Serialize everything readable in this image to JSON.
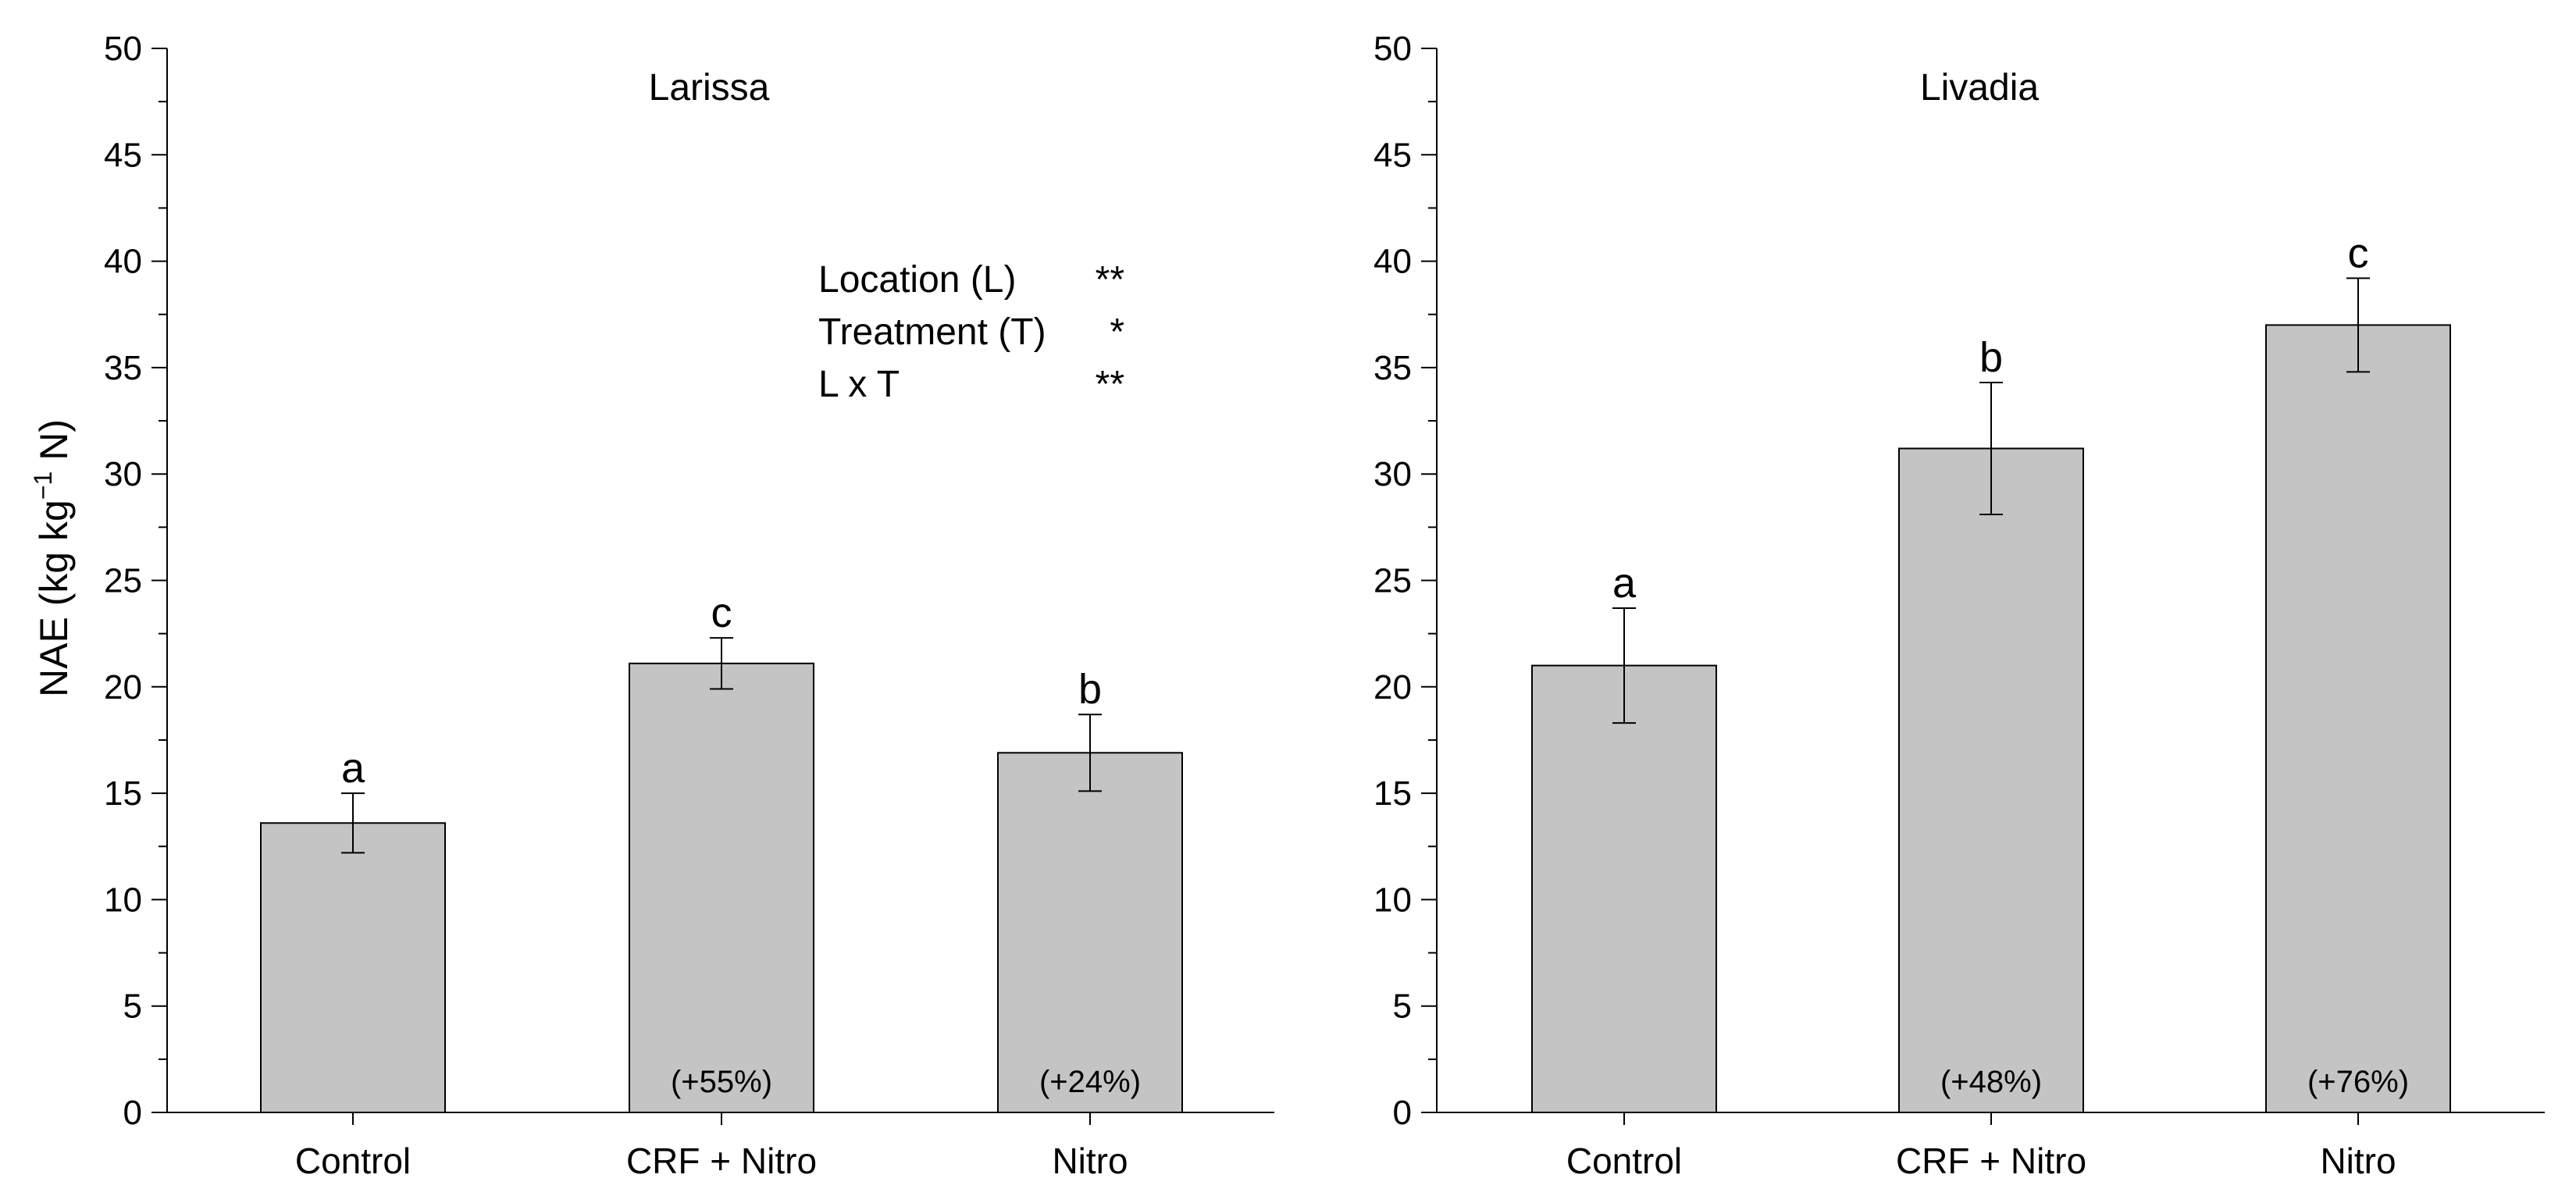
{
  "chart_data": [
    {
      "type": "bar",
      "title": "Larissa",
      "ylabel": "NAE (kg kg",
      "ylabel_sup": "−1",
      "ylabel_tail": " N)",
      "ylim": [
        0,
        50
      ],
      "yticks": [
        0,
        5,
        10,
        15,
        20,
        25,
        30,
        35,
        40,
        45,
        50
      ],
      "categories": [
        "Control",
        "CRF + Nitro",
        "Nitro"
      ],
      "values": [
        13.6,
        21.1,
        16.9
      ],
      "errors": [
        1.4,
        1.2,
        1.8
      ],
      "letters": [
        "a",
        "c",
        "b"
      ],
      "changes": [
        "",
        "(+55%)",
        "(+24%)"
      ],
      "stats": [
        {
          "factor": "Location (L)",
          "sig": "**"
        },
        {
          "factor": "Treatment (T)",
          "sig": "*"
        },
        {
          "factor": "L x T",
          "sig": "**"
        }
      ]
    },
    {
      "type": "bar",
      "title": "Livadia",
      "ylim": [
        0,
        50
      ],
      "yticks": [
        0,
        5,
        10,
        15,
        20,
        25,
        30,
        35,
        40,
        45,
        50
      ],
      "categories": [
        "Control",
        "CRF + Nitro",
        "Nitro"
      ],
      "values": [
        21.0,
        31.2,
        37.0
      ],
      "errors": [
        2.7,
        3.1,
        2.2
      ],
      "letters": [
        "a",
        "b",
        "c"
      ],
      "changes": [
        "",
        "(+48%)",
        "(+76%)"
      ]
    }
  ],
  "colors": {
    "bar_fill": "#c4c4c4",
    "bar_stroke": "#000000",
    "axis": "#000000"
  }
}
